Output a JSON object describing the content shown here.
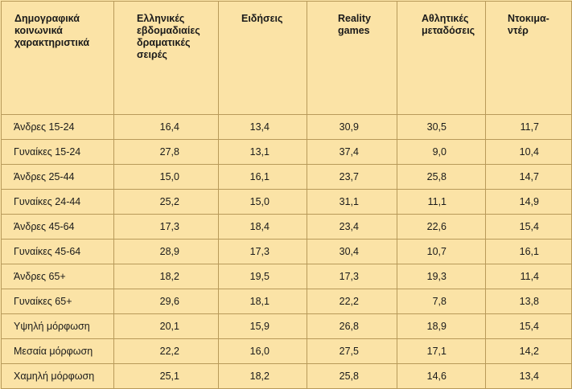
{
  "table": {
    "headers": [
      [
        "Δημογραφικά",
        "κοινωνικά",
        "χαρακτηριστικά"
      ],
      [
        "Ελληνικές",
        "εβδομαδιαίες",
        "δραματικές",
        "σειρές"
      ],
      [
        "Ειδήσεις"
      ],
      [
        "Reality",
        "games"
      ],
      [
        "Αθλητικές",
        "μεταδόσεις"
      ],
      [
        "Ντοκιμα-",
        "ντέρ"
      ]
    ],
    "rows": [
      {
        "label": "Άνδρες 15-24",
        "values": [
          "16,4",
          "13,4",
          "30,9",
          "30,5",
          "11,7"
        ]
      },
      {
        "label": "Γυναίκες 15-24",
        "values": [
          "27,8",
          "13,1",
          "37,4",
          "9,0",
          "10,4"
        ]
      },
      {
        "label": "Άνδρες 25-44",
        "values": [
          "15,0",
          "16,1",
          "23,7",
          "25,8",
          "14,7"
        ]
      },
      {
        "label": "Γυναίκες 24-44",
        "values": [
          "25,2",
          "15,0",
          "31,1",
          "11,1",
          "14,9"
        ]
      },
      {
        "label": "Άνδρες 45-64",
        "values": [
          "17,3",
          "18,4",
          "23,4",
          "22,6",
          "15,4"
        ]
      },
      {
        "label": "Γυναίκες 45-64",
        "values": [
          "28,9",
          "17,3",
          "30,4",
          "10,7",
          "16,1"
        ]
      },
      {
        "label": "Άνδρες 65+",
        "values": [
          "18,2",
          "19,5",
          "17,3",
          "19,3",
          "11,4"
        ]
      },
      {
        "label": "Γυναίκες 65+",
        "values": [
          "29,6",
          "18,1",
          "22,2",
          "7,8",
          "13,8"
        ]
      },
      {
        "label": "Υψηλή μόρφωση",
        "values": [
          "20,1",
          "15,9",
          "26,8",
          "18,9",
          "15,4"
        ]
      },
      {
        "label": "Μεσαία μόρφωση",
        "values": [
          "22,2",
          "16,0",
          "27,5",
          "17,1",
          "14,2"
        ]
      },
      {
        "label": "Χαμηλή μόρφωση",
        "values": [
          "25,1",
          "18,2",
          "25,8",
          "14,6",
          "13,4"
        ]
      }
    ]
  }
}
